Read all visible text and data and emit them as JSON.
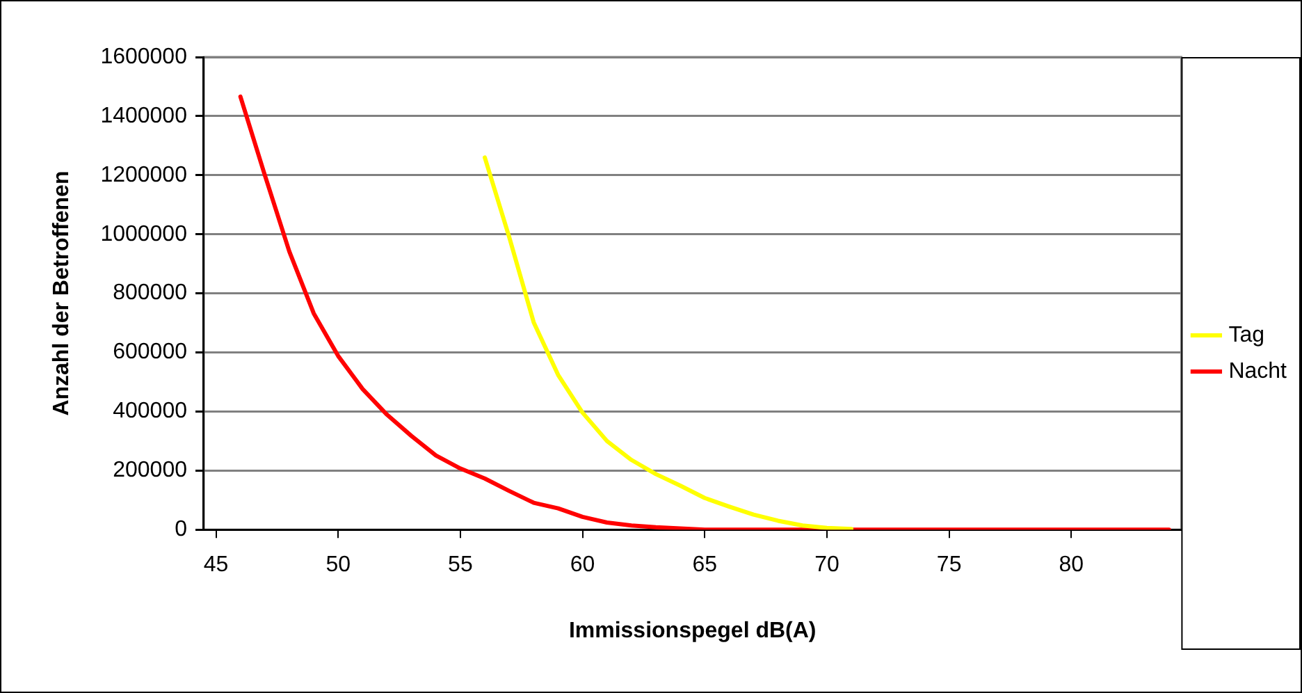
{
  "chart_data": {
    "type": "line",
    "xlabel": "Immissionspegel dB(A)",
    "ylabel": "Anzahl der Betroffenen",
    "xlim": [
      44.5,
      84.5
    ],
    "xticks": [
      45,
      50,
      55,
      60,
      65,
      70,
      75,
      80
    ],
    "ylim": [
      0,
      1600000
    ],
    "yticks": [
      0,
      200000,
      400000,
      600000,
      800000,
      1000000,
      1200000,
      1400000,
      1600000
    ],
    "grid": "y",
    "legend": "right",
    "marker": "none",
    "line_style": "solid",
    "series": [
      {
        "name": "Tag",
        "color": "#ffff00",
        "x": [
          56,
          57,
          58,
          59,
          60,
          61,
          62,
          63,
          64,
          65,
          66,
          67,
          68,
          69,
          70,
          71
        ],
        "values": [
          1260000,
          990000,
          702000,
          524000,
          396000,
          300000,
          236000,
          188000,
          149000,
          107000,
          78000,
          51000,
          30000,
          14000,
          6000,
          2000
        ]
      },
      {
        "name": "Nacht",
        "color": "#ff0000",
        "x": [
          46,
          47,
          48,
          49,
          50,
          51,
          52,
          53,
          54,
          55,
          56,
          57,
          58,
          59,
          60,
          61,
          62,
          63,
          64,
          65,
          66,
          67,
          68,
          69,
          70,
          71,
          72,
          73,
          74,
          75,
          76,
          77,
          78,
          79,
          80,
          81,
          82,
          83,
          84
        ],
        "values": [
          1466000,
          1200000,
          942000,
          732000,
          588000,
          476000,
          389000,
          317000,
          251000,
          207000,
          173000,
          131000,
          91000,
          72000,
          43000,
          24000,
          14000,
          8000,
          4000,
          0,
          0,
          0,
          0,
          0,
          0,
          0,
          0,
          0,
          0,
          0,
          0,
          0,
          0,
          0,
          0,
          0,
          0,
          0,
          0
        ]
      }
    ]
  }
}
